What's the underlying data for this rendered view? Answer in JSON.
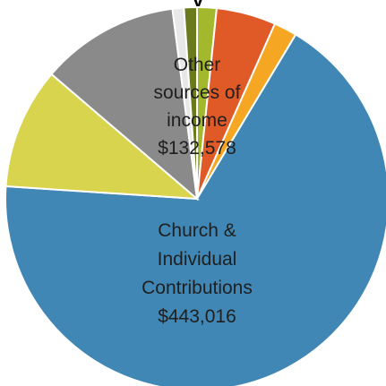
{
  "chart_data": {
    "type": "pie",
    "title": "",
    "title_fragment": "y",
    "slices": [
      {
        "label": "",
        "value": 10770,
        "color": "#a4b82e"
      },
      {
        "label": "",
        "value": 33000,
        "color": "#e05a28"
      },
      {
        "label": "",
        "value": 12800,
        "color": "#f5a623"
      },
      {
        "label": "Church & Individual Contributions",
        "amount": "$443,016",
        "value": 443016,
        "color": "#4187b5"
      },
      {
        "label": "",
        "value": 67200,
        "color": "#d9d44e"
      },
      {
        "label": "",
        "value": 76700,
        "color": "#8a8a8a"
      },
      {
        "label": "",
        "value": 6300,
        "color": "#e8e8e8"
      },
      {
        "label": "",
        "value": 7200,
        "color": "#6b7a1c"
      }
    ],
    "annotations": [
      {
        "lines": [
          "Other",
          "sources of",
          "income",
          "$132,578"
        ]
      },
      {
        "lines": [
          "Church &",
          "Individual",
          "Contributions",
          "$443,016"
        ]
      }
    ],
    "start_angle_deg": 0,
    "direction": "clockwise",
    "legend": "none"
  }
}
